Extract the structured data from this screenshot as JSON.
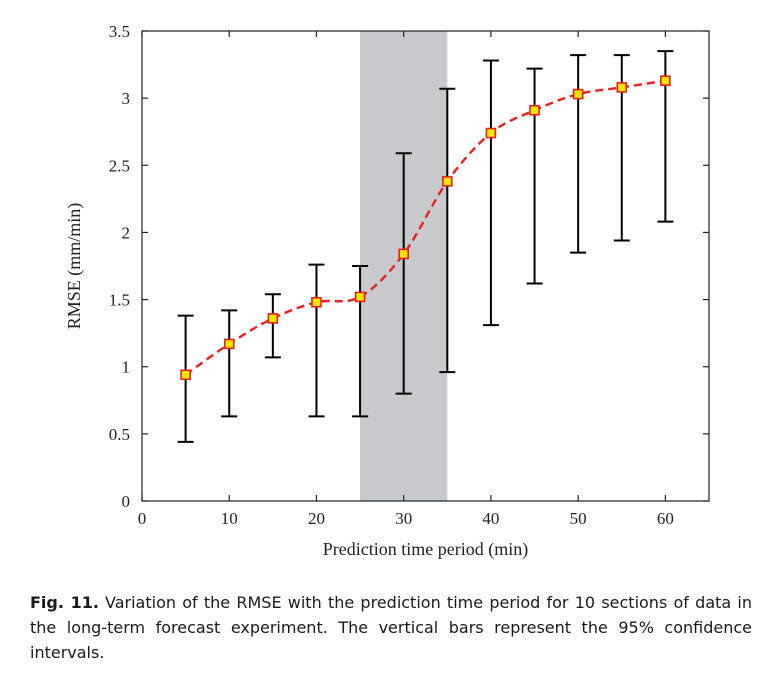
{
  "chart_data": {
    "type": "line",
    "title": "",
    "xlabel": "Prediction time period (min)",
    "ylabel": "RMSE (mm/min)",
    "xlim": [
      0,
      65
    ],
    "ylim": [
      0,
      3.5
    ],
    "x_ticks": [
      0,
      10,
      20,
      30,
      40,
      50,
      60
    ],
    "x_tick_labels": [
      "0",
      "10",
      "20",
      "30",
      "40",
      "50",
      "60"
    ],
    "y_ticks": [
      0,
      0.5,
      1,
      1.5,
      2,
      2.5,
      3,
      3.5
    ],
    "y_tick_labels": [
      "0",
      "0.5",
      "1",
      "1.5",
      "2",
      "2.5",
      "3",
      "3.5"
    ],
    "grid": false,
    "shaded_region": {
      "x_start": 25,
      "x_end": 35,
      "color": "#c8c9cc"
    },
    "series": [
      {
        "x": [
          5,
          10,
          15,
          20,
          25,
          30,
          35,
          40,
          45,
          50,
          55,
          60
        ],
        "y": [
          0.94,
          1.17,
          1.36,
          1.48,
          1.52,
          1.84,
          2.38,
          2.74,
          2.91,
          3.03,
          3.08,
          3.13
        ],
        "err_low": [
          0.44,
          0.63,
          1.07,
          0.63,
          0.63,
          0.8,
          0.96,
          1.31,
          1.62,
          1.85,
          1.94,
          2.08
        ],
        "err_high": [
          1.38,
          1.42,
          1.54,
          1.76,
          1.75,
          2.59,
          3.07,
          3.28,
          3.22,
          3.32,
          3.32,
          3.35
        ],
        "line_color": "#e8201f",
        "line_style": "dashed",
        "marker": "square",
        "marker_fill": "#f5e600",
        "marker_edge": "#e8201f",
        "errorbar_color": "#000000"
      }
    ]
  },
  "caption": {
    "label": "Fig. 11.",
    "text": "Variation of the RMSE with the prediction time period for 10 sections of data in the long-term forecast experiment. The vertical bars represent the 95% confidence intervals."
  }
}
